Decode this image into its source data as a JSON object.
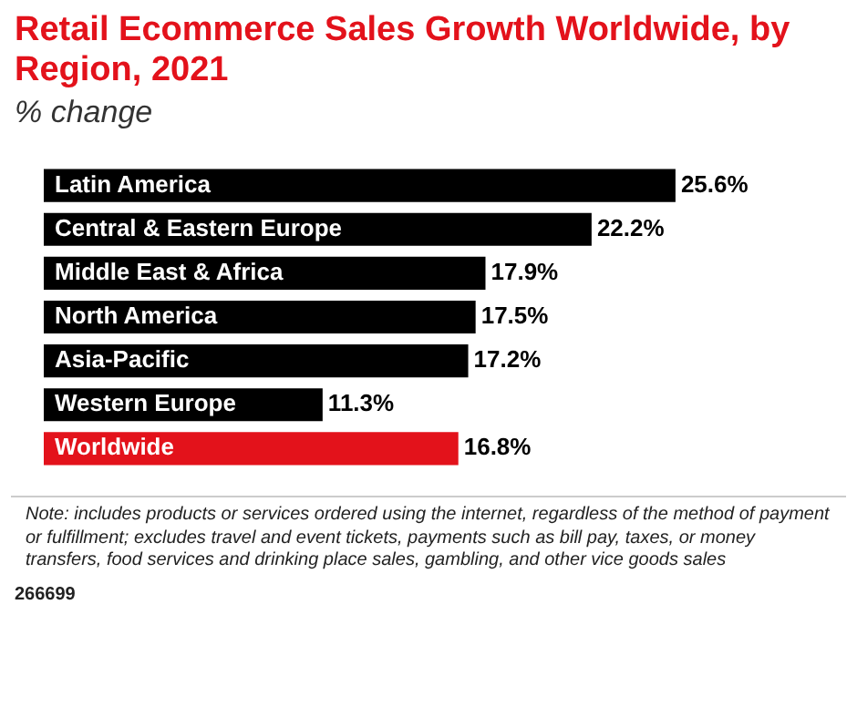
{
  "chart_data": {
    "type": "bar",
    "orientation": "horizontal",
    "title": "Retail Ecommerce Sales Growth Worldwide, by Region, 2021",
    "subtitle": "% change",
    "categories": [
      "Latin America",
      "Central & Eastern Europe",
      "Middle East & Africa",
      "North America",
      "Asia-Pacific",
      "Western Europe",
      "Worldwide"
    ],
    "values": [
      25.6,
      22.2,
      17.9,
      17.5,
      17.2,
      11.3,
      16.8
    ],
    "colors": [
      "#000000",
      "#000000",
      "#000000",
      "#000000",
      "#000000",
      "#000000",
      "#e3121b"
    ],
    "value_labels": [
      "25.6%",
      "22.2%",
      "17.9%",
      "17.5%",
      "17.2%",
      "11.3%",
      "16.8%"
    ],
    "legend": false,
    "tick_labels": "y",
    "annotations": [
      "Note: includes products or services ordered using the internet, regardless of the method of payment or fulfillment; excludes travel and event tickets, payments such as bill pay, taxes, or money transfers, food services and drinking place sales, gambling, and other vice goods sales",
      "266699"
    ]
  }
}
